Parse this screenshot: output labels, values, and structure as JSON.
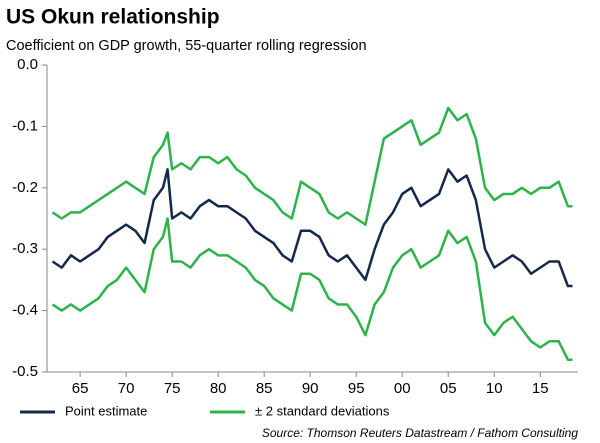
{
  "chart_data": {
    "type": "line",
    "title": "US Okun relationship",
    "subtitle": "Coefficient on GDP growth, 55-quarter rolling regression",
    "source": "Source: Thomson Reuters Datastream / Fathom Consulting",
    "x": [
      1962,
      1963,
      1964,
      1965,
      1966,
      1967,
      1968,
      1969,
      1970,
      1971,
      1972,
      1973,
      1974,
      1974.5,
      1975,
      1976,
      1977,
      1978,
      1979,
      1980,
      1981,
      1982,
      1983,
      1984,
      1985,
      1986,
      1987,
      1988,
      1989,
      1990,
      1991,
      1992,
      1993,
      1994,
      1995,
      1996,
      1997,
      1998,
      1999,
      2000,
      2001,
      2002,
      2003,
      2004,
      2005,
      2006,
      2007,
      2008,
      2009,
      2010,
      2011,
      2012,
      2013,
      2014,
      2015,
      2016,
      2017,
      2018,
      2018.5
    ],
    "series": [
      {
        "name": "Point estimate",
        "color": "#14284b",
        "values": [
          -0.32,
          -0.33,
          -0.31,
          -0.32,
          -0.31,
          -0.3,
          -0.28,
          -0.27,
          -0.26,
          -0.27,
          -0.29,
          -0.22,
          -0.2,
          -0.17,
          -0.25,
          -0.24,
          -0.25,
          -0.23,
          -0.22,
          -0.23,
          -0.23,
          -0.24,
          -0.25,
          -0.27,
          -0.28,
          -0.29,
          -0.31,
          -0.32,
          -0.27,
          -0.27,
          -0.28,
          -0.31,
          -0.32,
          -0.31,
          -0.33,
          -0.35,
          -0.3,
          -0.26,
          -0.24,
          -0.21,
          -0.2,
          -0.23,
          -0.22,
          -0.21,
          -0.17,
          -0.19,
          -0.18,
          -0.22,
          -0.3,
          -0.33,
          -0.32,
          -0.31,
          -0.32,
          -0.34,
          -0.33,
          -0.32,
          -0.32,
          -0.36,
          -0.36
        ]
      },
      {
        "name": "± 2 standard deviations",
        "color": "#2db34a",
        "values": [
          -0.24,
          -0.25,
          -0.24,
          -0.24,
          -0.23,
          -0.22,
          -0.21,
          -0.2,
          -0.19,
          -0.2,
          -0.21,
          -0.15,
          -0.13,
          -0.11,
          -0.17,
          -0.16,
          -0.17,
          -0.15,
          -0.15,
          -0.16,
          -0.15,
          -0.17,
          -0.18,
          -0.2,
          -0.21,
          -0.22,
          -0.24,
          -0.25,
          -0.19,
          -0.2,
          -0.21,
          -0.24,
          -0.25,
          -0.24,
          -0.25,
          -0.26,
          -0.19,
          -0.12,
          -0.11,
          -0.1,
          -0.09,
          -0.13,
          -0.12,
          -0.11,
          -0.07,
          -0.09,
          -0.08,
          -0.12,
          -0.2,
          -0.22,
          -0.21,
          -0.21,
          -0.2,
          -0.21,
          -0.2,
          -0.2,
          -0.19,
          -0.23,
          -0.23
        ],
        "lower": [
          -0.39,
          -0.4,
          -0.39,
          -0.4,
          -0.39,
          -0.38,
          -0.36,
          -0.35,
          -0.33,
          -0.35,
          -0.37,
          -0.3,
          -0.28,
          -0.25,
          -0.32,
          -0.32,
          -0.33,
          -0.31,
          -0.3,
          -0.31,
          -0.31,
          -0.32,
          -0.33,
          -0.35,
          -0.36,
          -0.38,
          -0.39,
          -0.4,
          -0.34,
          -0.34,
          -0.35,
          -0.38,
          -0.39,
          -0.39,
          -0.41,
          -0.44,
          -0.39,
          -0.37,
          -0.33,
          -0.31,
          -0.3,
          -0.33,
          -0.32,
          -0.31,
          -0.27,
          -0.29,
          -0.28,
          -0.32,
          -0.42,
          -0.44,
          -0.42,
          -0.41,
          -0.43,
          -0.45,
          -0.46,
          -0.45,
          -0.45,
          -0.48,
          -0.48
        ]
      }
    ],
    "xlim": [
      1961.4,
      2019.1
    ],
    "xticks": [
      {
        "value": 1965,
        "label": "65"
      },
      {
        "value": 1970,
        "label": "70"
      },
      {
        "value": 1975,
        "label": "75"
      },
      {
        "value": 1980,
        "label": "80"
      },
      {
        "value": 1985,
        "label": "85"
      },
      {
        "value": 1990,
        "label": "90"
      },
      {
        "value": 1995,
        "label": "95"
      },
      {
        "value": 2000,
        "label": "00"
      },
      {
        "value": 2005,
        "label": "05"
      },
      {
        "value": 2010,
        "label": "10"
      },
      {
        "value": 2015,
        "label": "15"
      }
    ],
    "ylim": [
      -0.5,
      0
    ],
    "yticks": [
      {
        "value": 0,
        "label": "0.0"
      },
      -0.1,
      -0.2,
      -0.3,
      -0.4,
      -0.5
    ],
    "grid": false
  }
}
